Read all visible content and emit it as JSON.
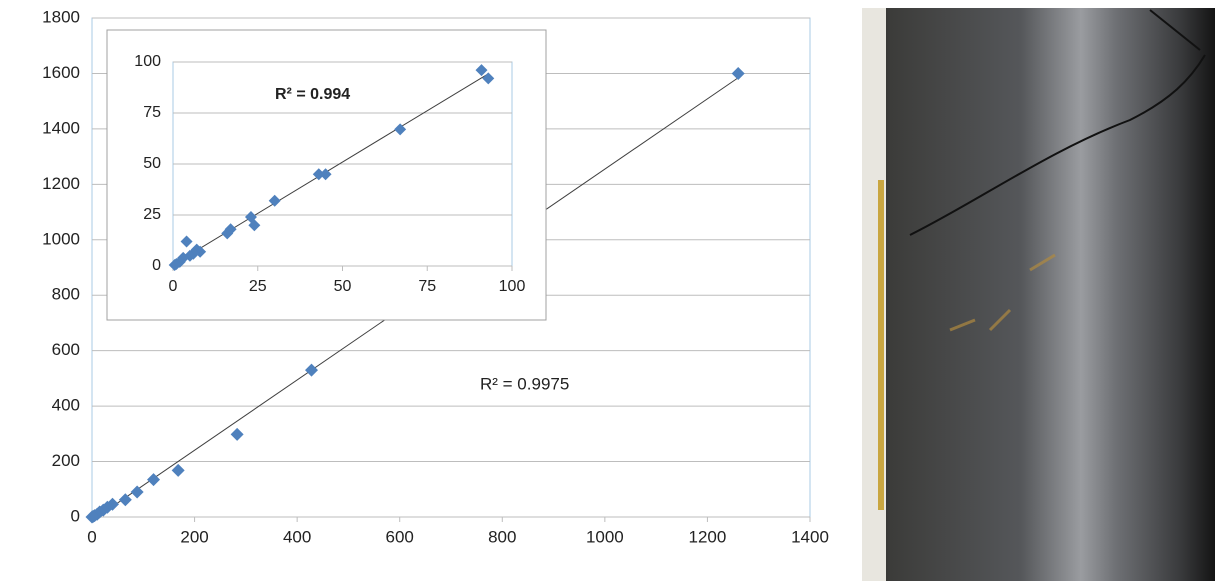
{
  "chart_data": [
    {
      "type": "scatter",
      "color": "#4f81bd",
      "trendline": true,
      "grid": true,
      "annotation": "R² = 0.9975",
      "x": [
        1260,
        428,
        283,
        168,
        120,
        88,
        65,
        40,
        30,
        22,
        15,
        10,
        5,
        2,
        0
      ],
      "values": [
        1600,
        530,
        298,
        168,
        135,
        90,
        62,
        46,
        35,
        25,
        18,
        10,
        5,
        2,
        0
      ],
      "xlim": [
        0,
        1400
      ],
      "xticks": [
        0,
        200,
        400,
        600,
        800,
        1000,
        1200,
        1400
      ],
      "ylim": [
        0,
        1800
      ],
      "yticks": [
        0,
        200,
        400,
        600,
        800,
        1000,
        1200,
        1400,
        1600,
        1800
      ]
    },
    {
      "type": "scatter",
      "color": "#4f81bd",
      "trendline": true,
      "grid": true,
      "annotation": "R² = 0.994",
      "x": [
        91,
        93,
        67,
        43,
        45,
        30,
        23,
        24,
        17,
        16,
        4,
        8,
        7,
        6,
        5,
        3,
        2,
        1,
        0.5
      ],
      "values": [
        96,
        92,
        67,
        45,
        45,
        32,
        24,
        20,
        18,
        16,
        12,
        7,
        8,
        6,
        5,
        4,
        2,
        1,
        0.5
      ],
      "xlim": [
        0,
        100
      ],
      "xticks": [
        0,
        25,
        50,
        75,
        100
      ],
      "ylim": [
        0,
        100
      ],
      "yticks": [
        0,
        25,
        50,
        75,
        100
      ]
    }
  ]
}
